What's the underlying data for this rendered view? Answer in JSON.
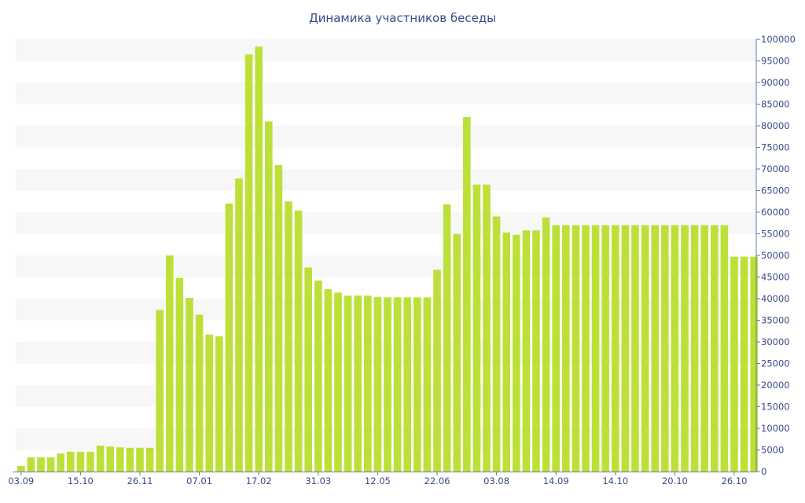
{
  "chart_data": {
    "type": "bar",
    "title": "Динамика участников беседы",
    "xlabel": "",
    "ylabel": "",
    "ylim": [
      0,
      100000
    ],
    "y_axis_side": "right",
    "grid": "alternating horizontal bands",
    "legend": "none",
    "bar_color": "#bde039",
    "title_color": "#3a4a8a",
    "band_color": "#f7f7f7",
    "yticks": [
      0,
      5000,
      10000,
      15000,
      20000,
      25000,
      30000,
      35000,
      40000,
      45000,
      50000,
      55000,
      60000,
      65000,
      70000,
      75000,
      80000,
      85000,
      90000,
      95000,
      100000
    ],
    "xtick_labels": [
      {
        "index": 0,
        "label": "03.09"
      },
      {
        "index": 6,
        "label": "15.10"
      },
      {
        "index": 12,
        "label": "26.11"
      },
      {
        "index": 18,
        "label": "07.01"
      },
      {
        "index": 24,
        "label": "17.02"
      },
      {
        "index": 30,
        "label": "31.03"
      },
      {
        "index": 36,
        "label": "12.05"
      },
      {
        "index": 42,
        "label": "22.06"
      },
      {
        "index": 48,
        "label": "03.08"
      },
      {
        "index": 54,
        "label": "14.09"
      },
      {
        "index": 60,
        "label": "14.10"
      },
      {
        "index": 66,
        "label": "20.10"
      },
      {
        "index": 72,
        "label": "26.10"
      }
    ],
    "values": [
      1300,
      3300,
      3300,
      3300,
      4200,
      4600,
      4600,
      4600,
      6000,
      5800,
      5600,
      5500,
      5500,
      5500,
      37400,
      50000,
      44800,
      40200,
      36300,
      31700,
      31300,
      62000,
      67800,
      96500,
      98300,
      81000,
      70900,
      62500,
      60400,
      47200,
      44200,
      42200,
      41400,
      40700,
      40700,
      40700,
      40400,
      40300,
      40300,
      40300,
      40300,
      40300,
      46700,
      61800,
      55000,
      82000,
      66400,
      66400,
      59000,
      55300,
      54800,
      55800,
      55800,
      58800,
      57000,
      57000,
      57000,
      57000,
      57000,
      57000,
      57000,
      57000,
      57000,
      57000,
      57000,
      57000,
      57000,
      57000,
      57000,
      57000,
      57000,
      57000,
      49700,
      49700,
      49700
    ]
  }
}
